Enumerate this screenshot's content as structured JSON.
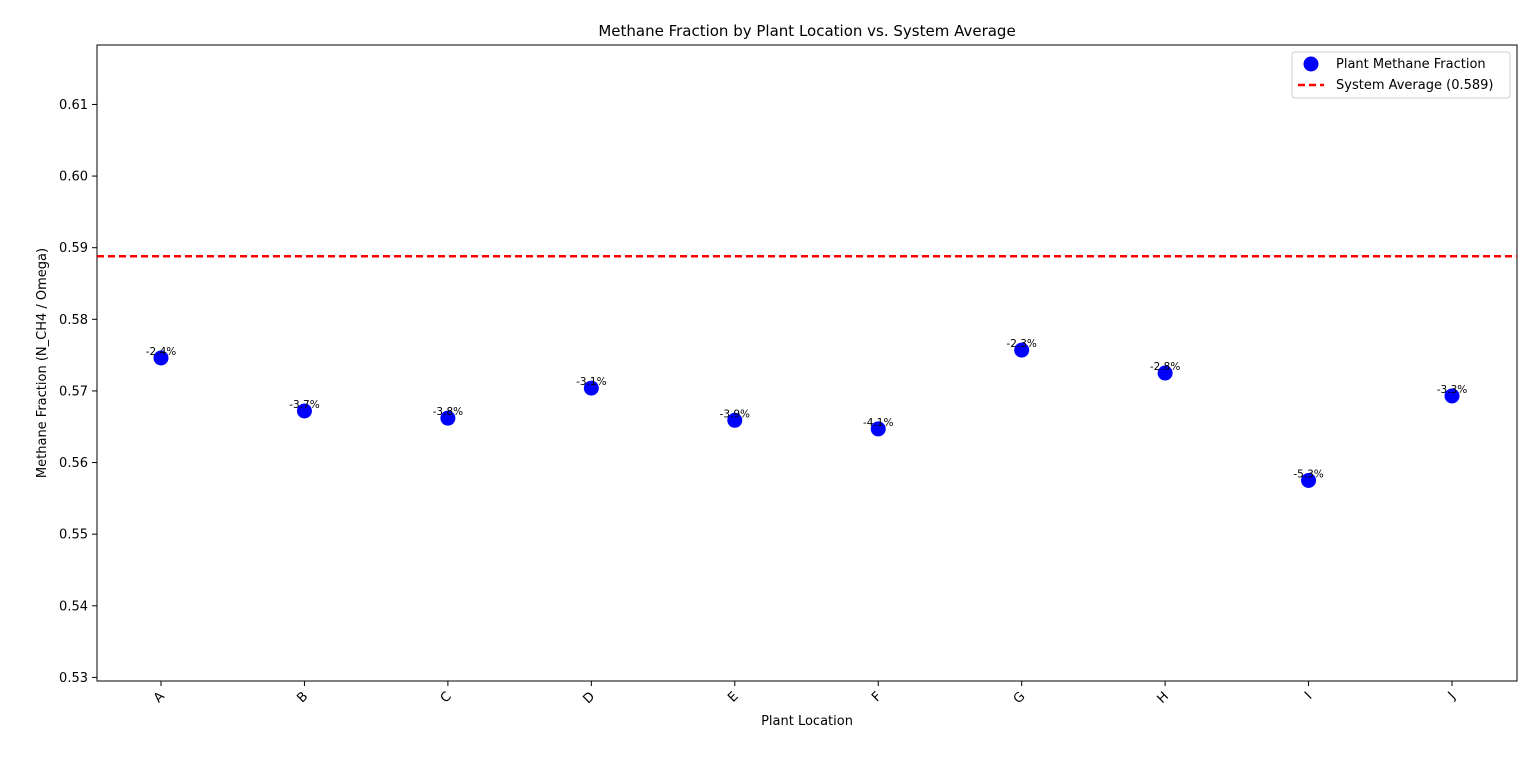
{
  "chart_data": {
    "type": "scatter",
    "title": "Methane Fraction by Plant Location vs. System Average",
    "xlabel": "Plant Location",
    "ylabel": "Methane Fraction (N_CH4 / Omega)",
    "categories": [
      "A",
      "B",
      "C",
      "D",
      "E",
      "F",
      "G",
      "H",
      "I",
      "J"
    ],
    "ylim": [
      0.5295,
      0.6183
    ],
    "yticks": [
      "0.53",
      "0.54",
      "0.55",
      "0.56",
      "0.57",
      "0.58",
      "0.59",
      "0.60",
      "0.61"
    ],
    "series": [
      {
        "name": "Plant Methane Fraction",
        "values": [
          0.5746,
          0.5672,
          0.5662,
          0.5704,
          0.5659,
          0.5647,
          0.5757,
          0.5725,
          0.5575,
          0.5693
        ],
        "labels": [
          "-2.4%",
          "-3.7%",
          "-3.8%",
          "-3.1%",
          "-3.9%",
          "-4.1%",
          "-2.3%",
          "-2.8%",
          "-5.3%",
          "-3.3%"
        ],
        "color": "#0000ff"
      }
    ],
    "reference_line": {
      "name": "System Average (0.589)",
      "value": 0.5888,
      "color": "#ff0000",
      "style": "dashed"
    },
    "grid": false,
    "legend": "top-right"
  }
}
